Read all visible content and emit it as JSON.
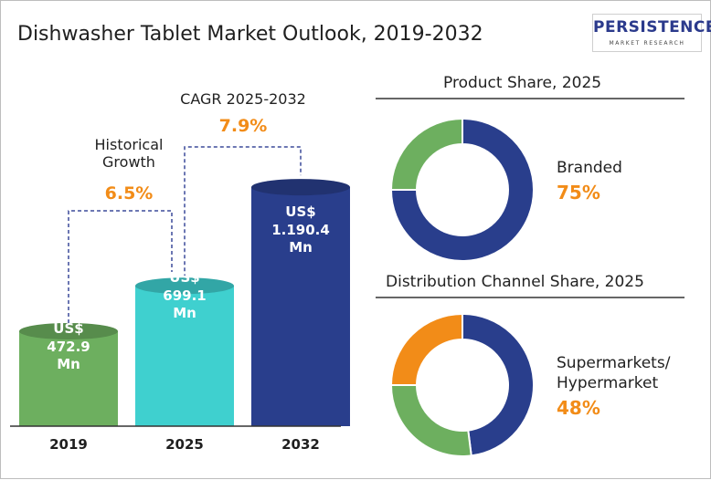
{
  "title": "Dishwasher Tablet Market Outlook, 2019-2032",
  "logo": {
    "main": "PERSISTENCE",
    "sub": "MARKET RESEARCH"
  },
  "colors": {
    "green": "#6daf5f",
    "teal": "#3fd0cf",
    "navy": "#293e8c",
    "orange": "#f28c18",
    "dashed": "#3b4a9a"
  },
  "chart_data": [
    {
      "type": "bar",
      "categories": [
        "2019",
        "2025",
        "2032"
      ],
      "values": [
        472.9,
        699.1,
        1190.4
      ],
      "bar_labels": [
        [
          "US$",
          "472.9",
          "Mn"
        ],
        [
          "US$",
          "699.1",
          "Mn"
        ],
        [
          "US$",
          "1.190.4",
          "Mn"
        ]
      ],
      "bar_colors": [
        "#6daf5f",
        "#3fd0cf",
        "#293e8c"
      ],
      "annotations": [
        {
          "label_lines": [
            "Historical",
            "Growth"
          ],
          "value": "6.5%"
        },
        {
          "label_lines": [
            "CAGR 2025-2032"
          ],
          "value": "7.9%"
        }
      ]
    },
    {
      "type": "pie",
      "title": "Product Share, 2025",
      "slices": [
        {
          "name": "Branded",
          "value": 75,
          "color": "#293e8c"
        },
        {
          "name": "",
          "value": 25,
          "color": "#6daf5f"
        }
      ],
      "highlight_label": "Branded",
      "highlight_value": "75%"
    },
    {
      "type": "pie",
      "title": "Distribution Channel Share, 2025",
      "slices": [
        {
          "name": "Supermarkets/ Hypermarket",
          "value": 48,
          "color": "#293e8c"
        },
        {
          "name": "",
          "value": 27,
          "color": "#6daf5f"
        },
        {
          "name": "",
          "value": 25,
          "color": "#f28c18"
        }
      ],
      "highlight_label_lines": [
        "Supermarkets/",
        "Hypermarket"
      ],
      "highlight_value": "48%"
    }
  ]
}
